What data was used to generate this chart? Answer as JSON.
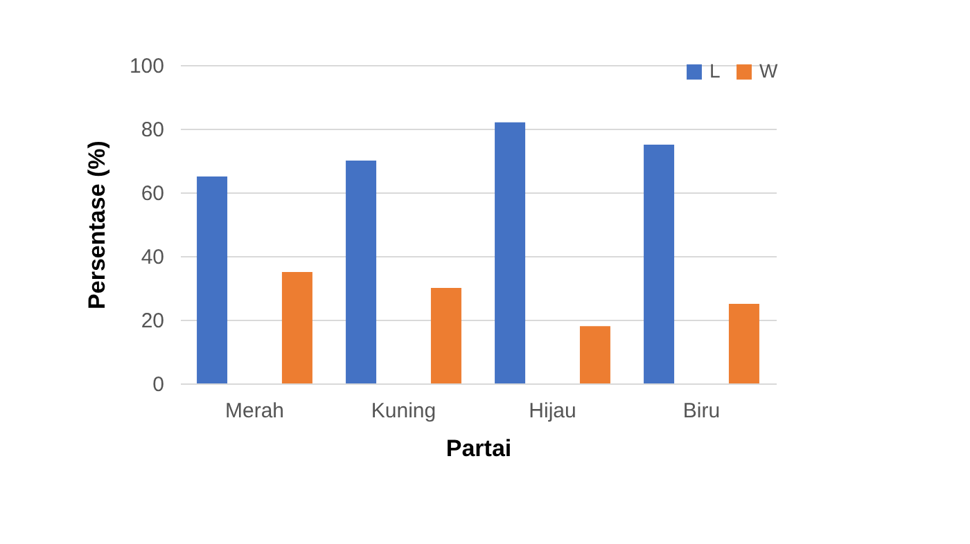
{
  "chart_data": {
    "type": "bar",
    "xlabel": "Partai",
    "ylabel": "Persentase (%)",
    "categories": [
      "Merah",
      "Kuning",
      "Hijau",
      "Biru"
    ],
    "series": [
      {
        "name": "L",
        "color": "#4472c4",
        "values": [
          65,
          70,
          82,
          75
        ]
      },
      {
        "name": "W",
        "color": "#ed7d31",
        "values": [
          35,
          30,
          18,
          25
        ]
      }
    ],
    "ylim": [
      0,
      100
    ],
    "yticks": [
      0,
      20,
      40,
      60,
      80,
      100
    ],
    "grid": "y",
    "legend": "top right"
  }
}
